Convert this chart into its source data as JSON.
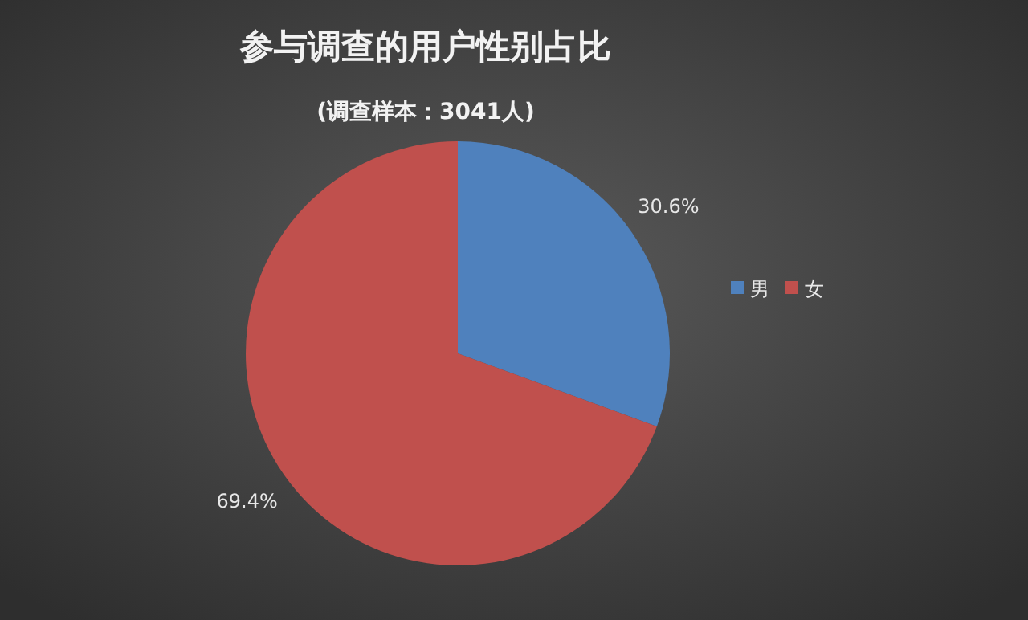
{
  "chart_data": {
    "type": "pie",
    "title": "参与调查的用户性别占比",
    "subtitle": "(调查样本：3041人)",
    "categories": [
      "男",
      "女"
    ],
    "values": [
      30.6,
      69.4
    ],
    "colors": [
      "#4f81bd",
      "#c0504d"
    ],
    "value_labels": [
      "30.6%",
      "69.4%"
    ],
    "legend": "right"
  }
}
